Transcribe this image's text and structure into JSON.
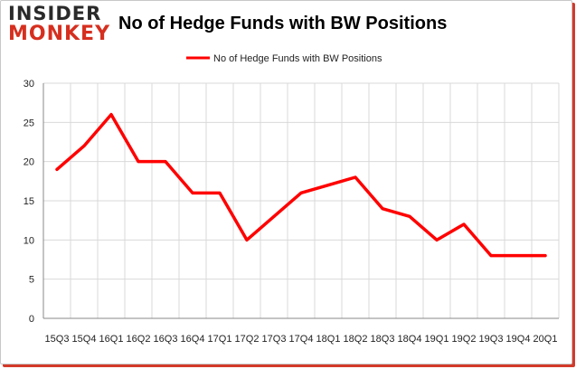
{
  "header": {
    "logo_top": "INSIDER",
    "logo_bottom": "MONKEY",
    "title": "No of Hedge Funds with BW Positions"
  },
  "colors": {
    "series": "#ff0000",
    "brand_red": "#d62f1f",
    "grid": "#d9d9d9"
  },
  "chart_data": {
    "type": "line",
    "title": "No of Hedge Funds with BW Positions",
    "xlabel": "",
    "ylabel": "",
    "ylim": [
      0,
      30
    ],
    "yticks": [
      0,
      5,
      10,
      15,
      20,
      25,
      30
    ],
    "grid": true,
    "legend_position": "top-center",
    "categories": [
      "15Q3",
      "15Q4",
      "16Q1",
      "16Q2",
      "16Q3",
      "16Q4",
      "17Q1",
      "17Q2",
      "17Q3",
      "17Q4",
      "18Q1",
      "18Q2",
      "18Q3",
      "18Q4",
      "19Q1",
      "19Q2",
      "19Q3",
      "19Q4",
      "20Q1"
    ],
    "series": [
      {
        "name": "No of Hedge Funds with BW Positions",
        "values": [
          19,
          22,
          26,
          20,
          20,
          16,
          16,
          10,
          13,
          16,
          17,
          18,
          14,
          13,
          10,
          12,
          8,
          8,
          8
        ]
      }
    ]
  }
}
